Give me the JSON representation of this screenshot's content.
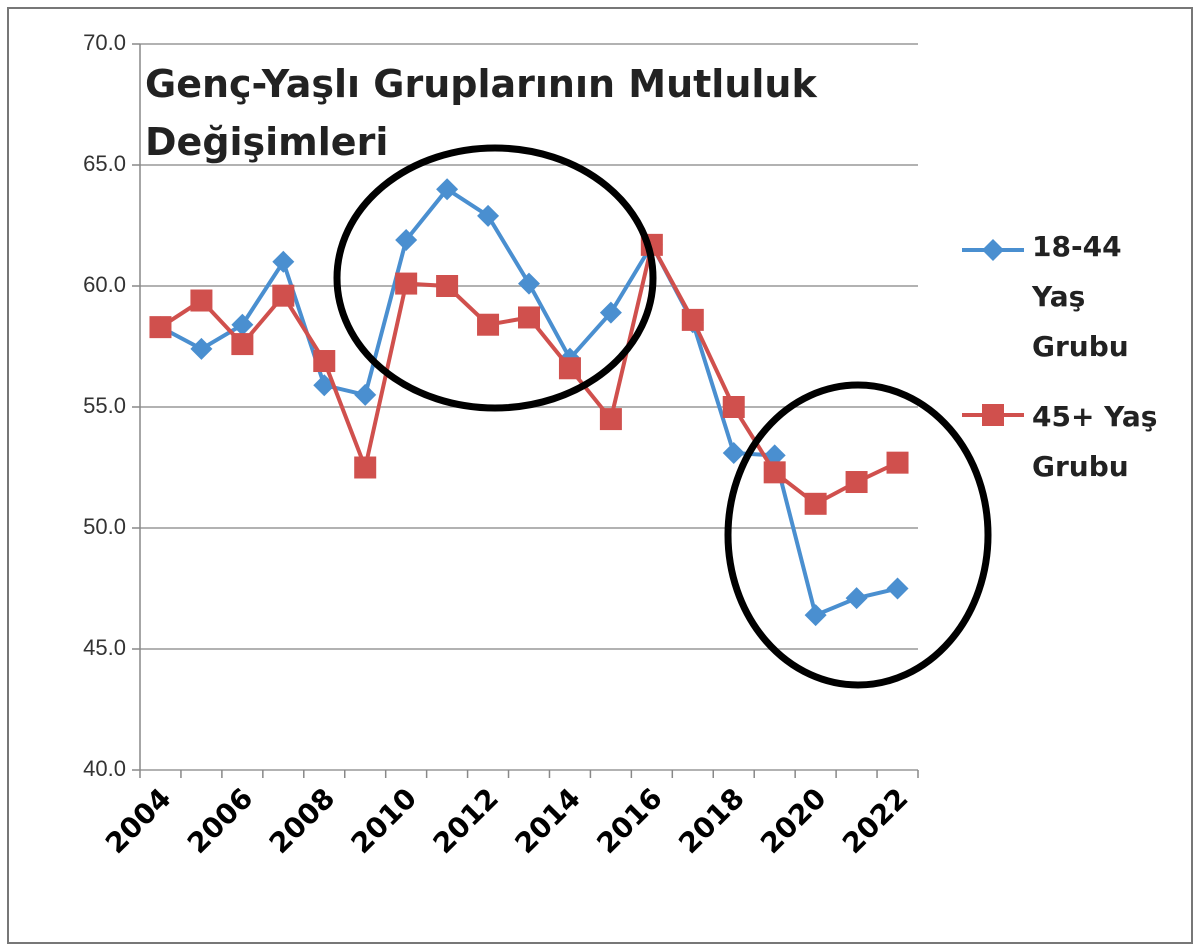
{
  "chart_data": {
    "type": "line",
    "title": "Genç-Yaşlı Gruplarının Mutluluk Değişimleri",
    "categories": [
      "2004",
      null,
      "2006",
      null,
      "2008",
      null,
      "2010",
      null,
      "2012",
      null,
      "2014",
      null,
      "2016",
      null,
      "2018",
      null,
      "2020",
      null,
      "2022"
    ],
    "series": [
      {
        "name": "18-44 Yaş Grubu",
        "color": "#4a8fd0",
        "marker": "diamond",
        "values": [
          58.3,
          57.4,
          58.4,
          61.0,
          55.9,
          55.5,
          61.9,
          64.0,
          62.9,
          60.1,
          57.0,
          58.9,
          61.7,
          58.5,
          53.1,
          53.0,
          46.4,
          47.1,
          47.5
        ]
      },
      {
        "name": "45+ Yaş Grubu",
        "color": "#d0504d",
        "marker": "square",
        "values": [
          58.3,
          59.4,
          57.6,
          59.6,
          56.9,
          52.5,
          60.1,
          60.0,
          58.4,
          58.7,
          56.6,
          54.5,
          61.7,
          58.6,
          55.0,
          52.3,
          51.0,
          51.9,
          52.7
        ]
      }
    ],
    "ylim": [
      40,
      70
    ],
    "yticks": [
      {
        "value": 40,
        "label": "40.0"
      },
      {
        "value": 45,
        "label": "45.0"
      },
      {
        "value": 50,
        "label": "50.0"
      },
      {
        "value": 55,
        "label": "55.0"
      },
      {
        "value": 60,
        "label": "60.0"
      },
      {
        "value": 65,
        "label": "65.0"
      },
      {
        "value": 70,
        "label": "70.0"
      }
    ],
    "grid": true,
    "legend": "right"
  }
}
